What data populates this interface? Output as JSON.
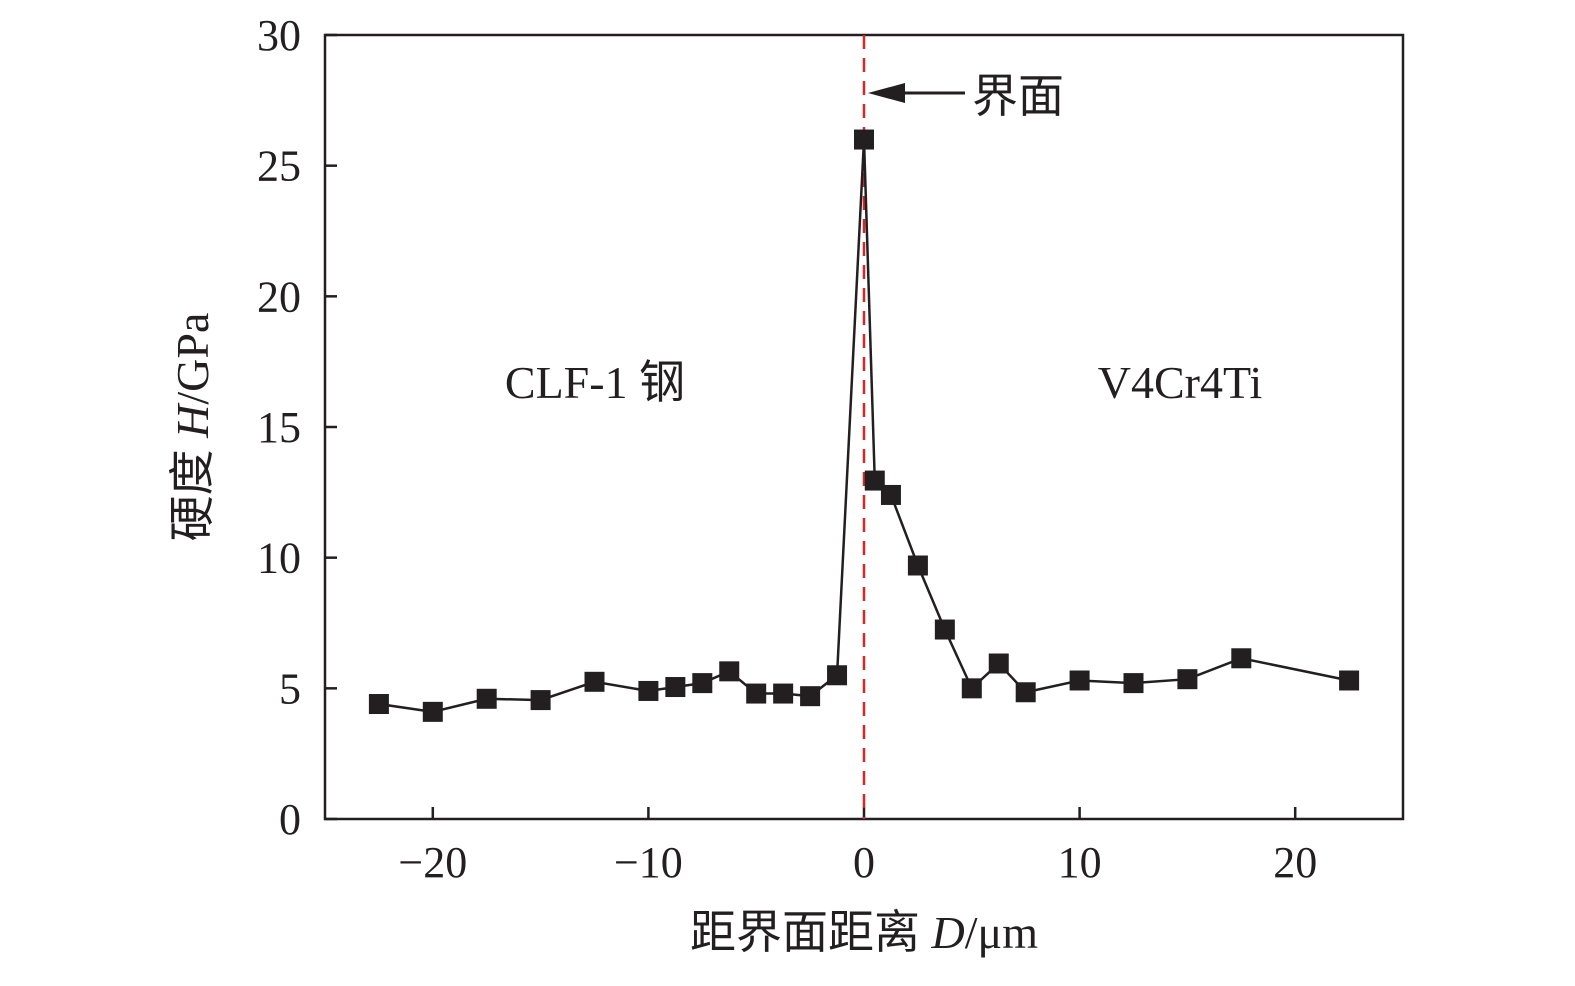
{
  "chart_data": {
    "type": "line",
    "title": "",
    "xlabel": {
      "prefix": "距界面距离 ",
      "var": "D",
      "suffix": "/μm"
    },
    "ylabel": {
      "prefix": "硬度 ",
      "var": "H",
      "suffix": "/GPa"
    },
    "xlim": [
      -25,
      25
    ],
    "ylim": [
      0,
      30
    ],
    "xticks": [
      -20,
      -10,
      0,
      10,
      20
    ],
    "xtick_labels": [
      "−20",
      "−10",
      "0",
      "10",
      "20"
    ],
    "yticks": [
      0,
      5,
      10,
      15,
      20,
      25,
      30
    ],
    "ytick_labels": [
      "0",
      "5",
      "10",
      "15",
      "20",
      "25",
      "30"
    ],
    "grid": false,
    "series": [
      {
        "name": "Hardness",
        "color": "#231f20",
        "marker": "square",
        "x": [
          -22.5,
          -20,
          -17.5,
          -15,
          -12.5,
          -10,
          -8.75,
          -7.5,
          -6.25,
          -5,
          -3.75,
          -2.5,
          -1.25,
          0,
          0.5,
          1.25,
          2.5,
          3.75,
          5,
          6.25,
          7.5,
          10,
          12.5,
          15,
          17.5,
          22.5
        ],
        "y": [
          4.4,
          4.1,
          4.6,
          4.55,
          5.25,
          4.9,
          5.05,
          5.2,
          5.65,
          4.8,
          4.8,
          4.7,
          5.5,
          26.0,
          12.95,
          12.4,
          9.7,
          7.25,
          5.0,
          5.95,
          4.85,
          5.3,
          5.2,
          5.35,
          6.15,
          5.3
        ]
      }
    ],
    "interface_line": {
      "x": 0,
      "color": "#d62728"
    },
    "annotations": {
      "interface": "界面",
      "left_region": "CLF-1 钢",
      "right_region": "V4Cr4Ti"
    }
  }
}
